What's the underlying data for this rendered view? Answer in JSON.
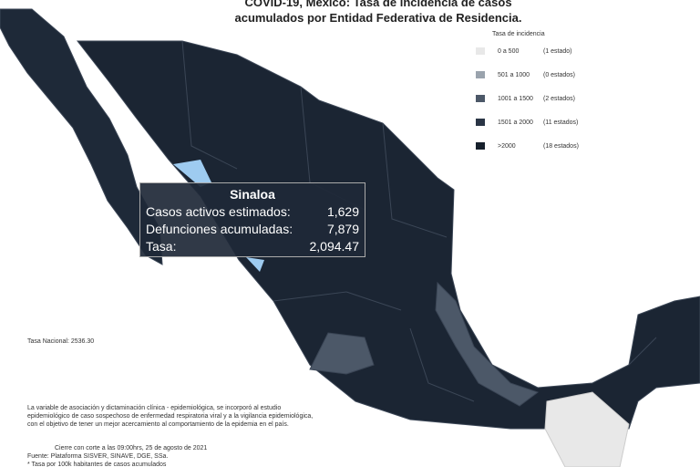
{
  "header": {
    "title": [
      "COVID-19, México: Tasa de incidencia de casos",
      "acumulados por Entidad Federativa de Residencia."
    ]
  },
  "legend": {
    "title": "Tasa de incidencia",
    "items": [
      {
        "range": "0 a 500",
        "count": "(1 estado)",
        "color": "#e8e8e8"
      },
      {
        "range": "501 a 1000",
        "count": "(0 estados)",
        "color": "#9aa3ad"
      },
      {
        "range": "1001 a 1500",
        "count": "(2 estados)",
        "color": "#4c5868"
      },
      {
        "range": "1501 a 2000",
        "count": "(11 estados)",
        "color": "#2a3545"
      },
      {
        "range": ">2000",
        "count": "(18 estados)",
        "color": "#17202c"
      }
    ]
  },
  "tooltip": {
    "state": "Sinaloa",
    "rows": [
      [
        "Casos activos estimados:",
        "1,629"
      ],
      [
        "Defunciones acumuladas:",
        "7,879"
      ],
      [
        "Tasa:",
        "2,094.47"
      ]
    ]
  },
  "national_rate": "Tasa Nacional: 2536.30",
  "notes": [
    "La variable de asociación y dictaminación clínica - epidemiológica, se incorporó al estudio",
    "epidemiológico de caso sospechoso de enfermedad respiratoria viral y a la vigilancia epidemiológica,",
    "con el objetivo de tener un mejor acercamiento al comportamiento de la epidemia en el país."
  ],
  "footer": [
    "Cierre con corte a las 09:00hrs, 25 de agosto de 2021",
    "Fuente: Plataforma SISVER, SINAVE, DGE, SSa.",
    "* Tasa por 100k habitantes de casos acumulados"
  ]
}
